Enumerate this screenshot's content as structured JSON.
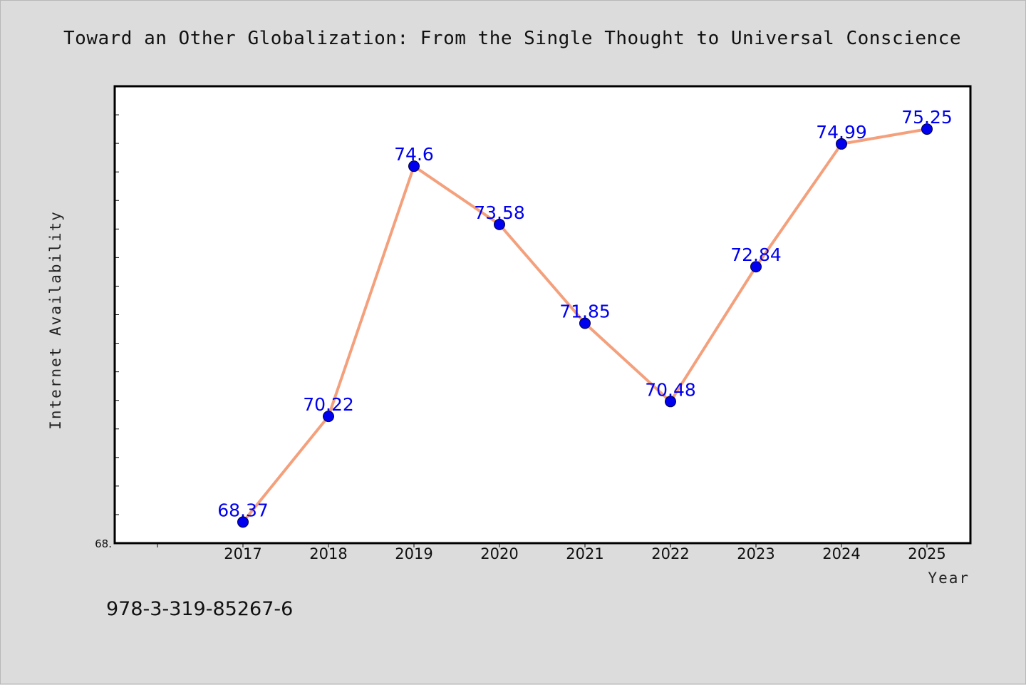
{
  "chart_data": {
    "type": "line",
    "title": "Toward an Other Globalization: From the Single Thought to Universal Conscience",
    "xlabel": "Year",
    "ylabel": "Internet Availability",
    "categories": [
      "2017",
      "2018",
      "2019",
      "2020",
      "2021",
      "2022",
      "2023",
      "2024",
      "2025"
    ],
    "values": [
      68.37,
      70.22,
      74.6,
      73.58,
      71.85,
      70.48,
      72.84,
      74.99,
      75.25
    ],
    "data_labels": [
      "68.37",
      "70.22",
      "74.6",
      "73.58",
      "71.85",
      "70.48",
      "72.84",
      "74.99",
      "75.25"
    ],
    "ylim": [
      68.0,
      76.0
    ],
    "ytick_label": "68.",
    "grid": false,
    "legend": "none",
    "line_color": "#f4a07c",
    "marker_color": "#0000ee",
    "label_color": "#0000ee"
  },
  "footer": {
    "isbn": "978-3-319-85267-6"
  }
}
